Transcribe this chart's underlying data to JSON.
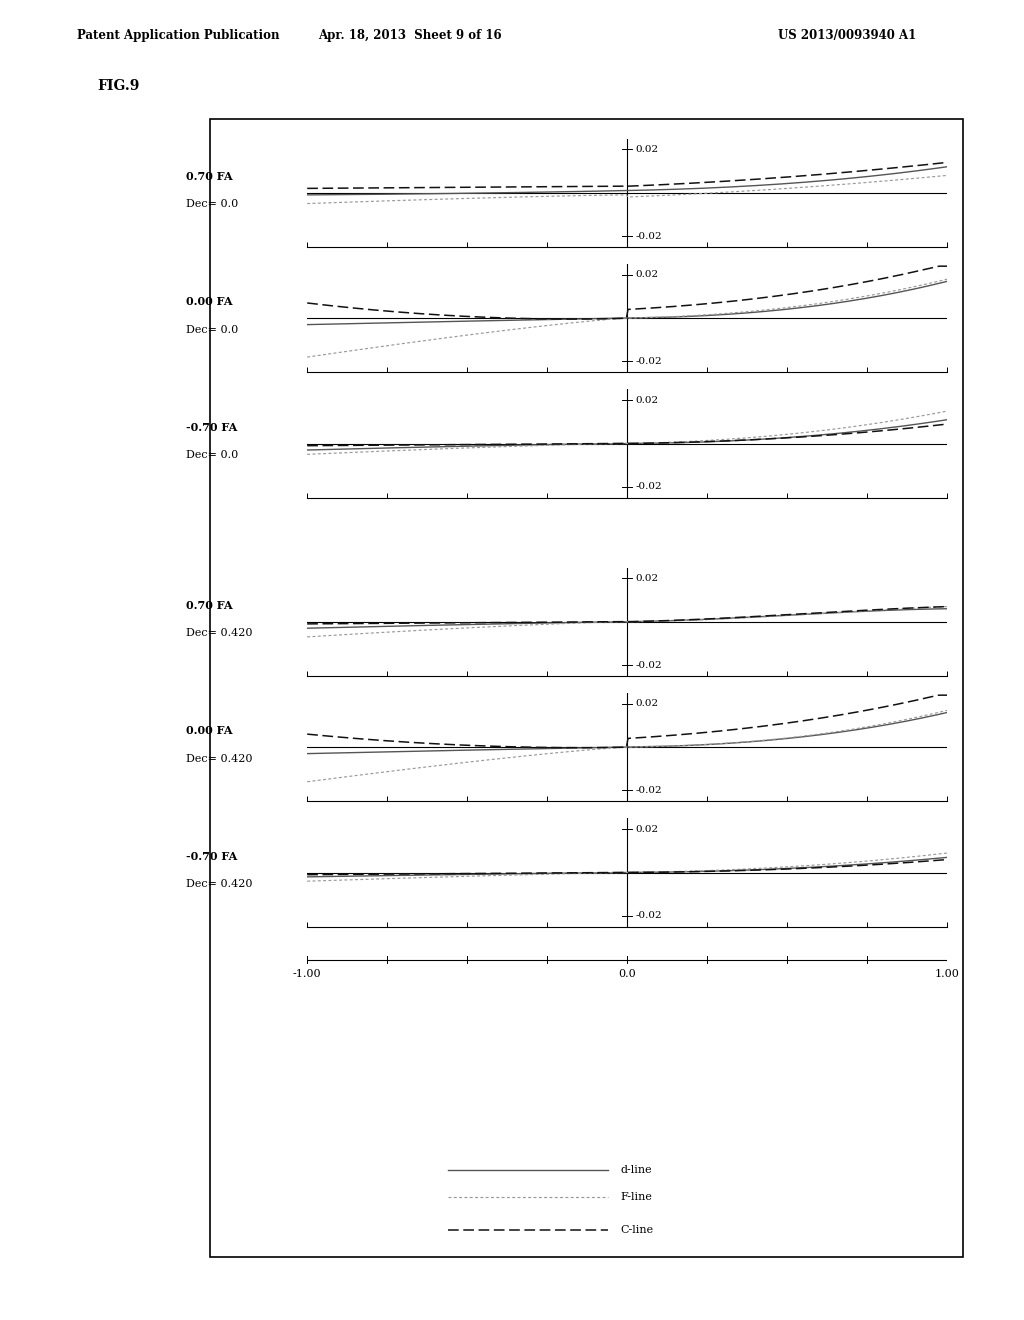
{
  "header1": "Patent Application Publication",
  "header2": "Apr. 18, 2013  Sheet 9 of 16",
  "header3": "US 2013/0093940 A1",
  "fig_label": "FIG.9",
  "subplots": [
    {
      "label_fa": "0.70 FA",
      "label_dec": "Dec= 0.0"
    },
    {
      "label_fa": "0.00 FA",
      "label_dec": "Dec= 0.0"
    },
    {
      "label_fa": "-0.70 FA",
      "label_dec": "Dec= 0.0"
    },
    {
      "label_fa": "0.70 FA",
      "label_dec": "Dec= 0.420"
    },
    {
      "label_fa": "0.00 FA",
      "label_dec": "Dec= 0.420"
    },
    {
      "label_fa": "-0.70 FA",
      "label_dec": "Dec= 0.420"
    }
  ],
  "xlim": [
    -1.0,
    1.0
  ],
  "ylim": [
    -0.025,
    0.025
  ],
  "xticks": [
    -1.0,
    -0.75,
    -0.5,
    -0.25,
    0.0,
    0.25,
    0.5,
    0.75,
    1.0
  ],
  "xlabel_ticks_labels": [
    "-1.00",
    "0.0",
    "1.00"
  ],
  "xlabel_ticks_vals": [
    -1.0,
    0.0,
    1.0
  ],
  "bg": "#ffffff",
  "lw_d": 1.0,
  "lw_f": 0.85,
  "lw_c": 1.1,
  "col_d": "#555555",
  "col_f": "#999999",
  "col_c": "#111111"
}
